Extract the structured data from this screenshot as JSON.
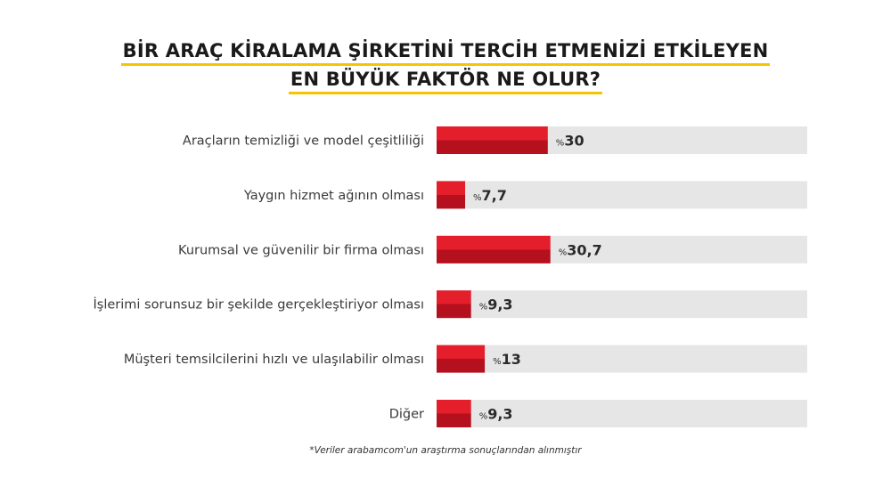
{
  "chart_data": {
    "type": "bar",
    "orientation": "horizontal",
    "title": "BİR ARAÇ KİRALAMA ŞİRKETİNİ TERCİH ETMENİZİ ETKİLEYEN EN BÜYÜK FAKTÖR NE OLUR?",
    "title_lines": [
      "BİR ARAÇ KİRALAMA ŞİRKETİNİ TERCİH ETMENİZİ ETKİLEYEN",
      "EN BÜYÜK FAKTÖR NE OLUR?"
    ],
    "categories": [
      "Araçların temizliği ve model çeşitliliği",
      "Yaygın hizmet ağının olması",
      "Kurumsal ve güvenilir bir firma olması",
      "İşlerimi sorunsuz bir şekilde gerçekleştiriyor olması",
      "Müşteri temsilcilerini hızlı ve ulaşılabilir olması",
      "Diğer"
    ],
    "values": [
      30,
      7.7,
      30.7,
      9.3,
      13,
      9.3
    ],
    "value_labels": [
      "30",
      "7,7",
      "30,7",
      "9,3",
      "13",
      "9,3"
    ],
    "value_prefix": "%",
    "xlim": [
      0,
      100
    ],
    "grid": false,
    "legend": "none",
    "footnote": "*Veriler arabamcom'un araştırma sonuçlarından alınmıştır",
    "colors": {
      "bar_top": "#e41e2b",
      "bar_bottom": "#b5101d",
      "track": "#e6e6e6",
      "title_underline": "#f6c500"
    }
  }
}
